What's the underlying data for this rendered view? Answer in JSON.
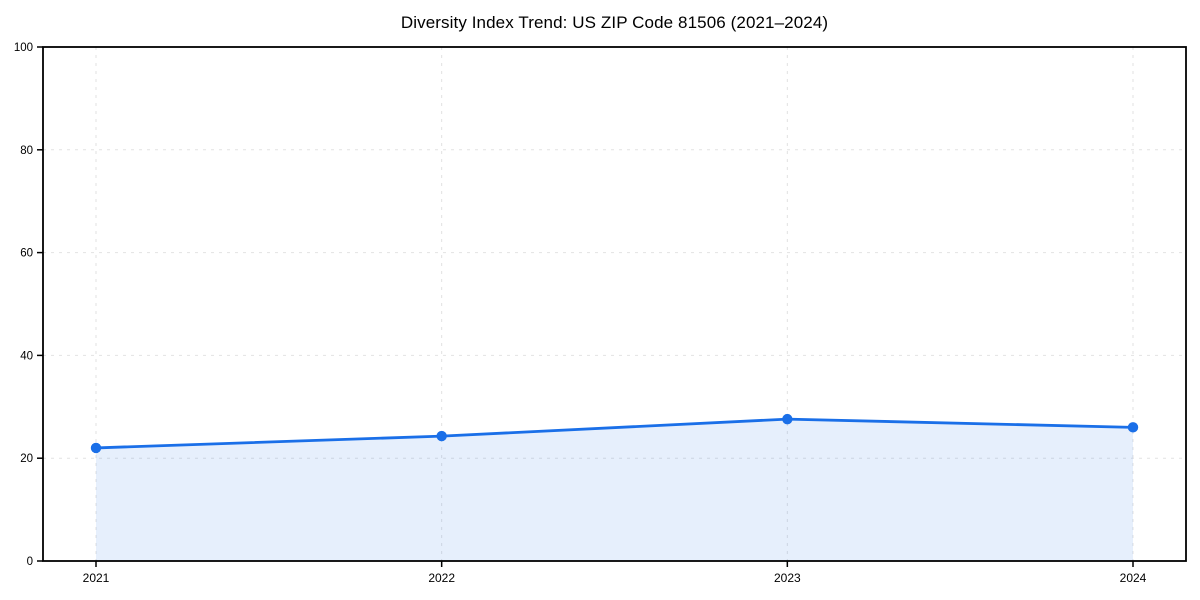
{
  "chart_data": {
    "type": "area",
    "title": "Diversity Index Trend: US ZIP Code 81506 (2021–2024)",
    "categories": [
      "2021",
      "2022",
      "2023",
      "2024"
    ],
    "series": [
      {
        "name": "Diversity Index",
        "values": [
          22.0,
          24.3,
          27.6,
          26.0
        ]
      }
    ],
    "xlabel": "",
    "ylabel": "",
    "ylim": [
      0,
      100
    ],
    "yticks": [
      0,
      20,
      40,
      60,
      80,
      100
    ],
    "grid": "dashed, horizontal and vertical",
    "legend": "none",
    "colors": {
      "line": "#1a6fe8",
      "marker": "#1a6fe8",
      "area_fill": "#1a6fe8",
      "area_fill_opacity": 0.11,
      "gridline": "#e2e2e2",
      "spine": "#000000",
      "background": "#ffffff"
    }
  }
}
